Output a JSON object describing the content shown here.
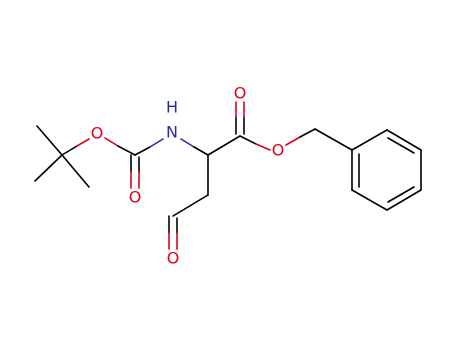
{
  "labels": {
    "o_boc_ether": "O",
    "h_amine": "H",
    "n_amine": "N",
    "o_boc_carbonyl": "O",
    "o_ester_carbonyl": "O",
    "o_ester_ether": "O",
    "o_aldehyde": "O"
  }
}
